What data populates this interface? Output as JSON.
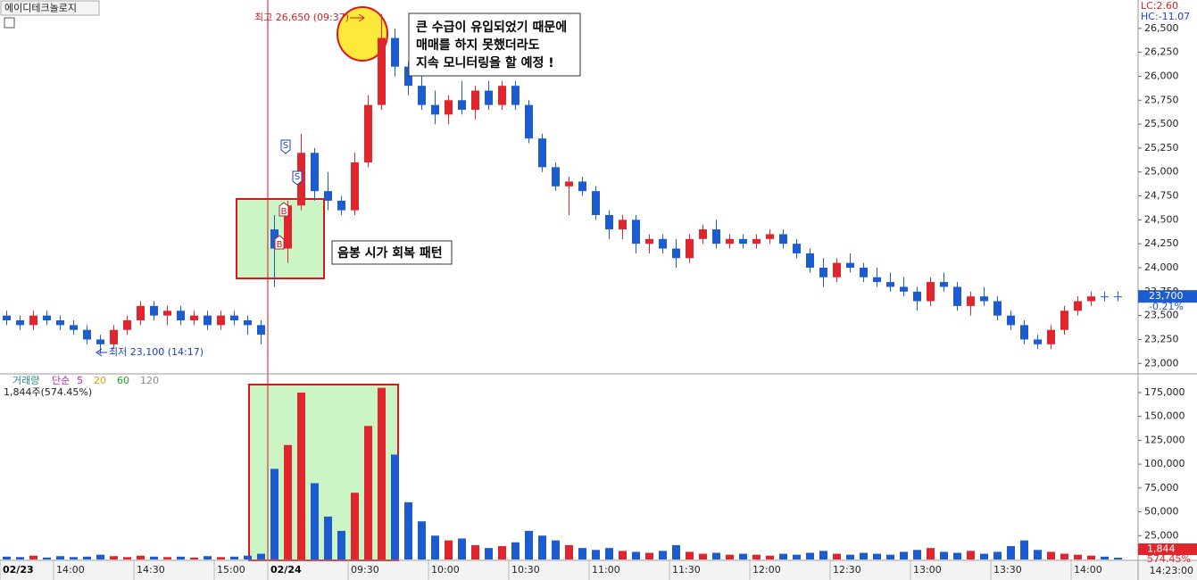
{
  "chart_data": [
    {
      "type": "candlestick",
      "title": "에이디테크놀로지",
      "categories": [
        "02/23",
        null,
        null,
        null,
        "14:00",
        null,
        null,
        null,
        null,
        null,
        "14:30",
        null,
        null,
        null,
        null,
        null,
        "15:00",
        null,
        null,
        null,
        "02/24",
        null,
        null,
        null,
        null,
        null,
        "09:30",
        null,
        null,
        null,
        null,
        null,
        "10:00",
        null,
        null,
        null,
        null,
        null,
        "10:30",
        null,
        null,
        null,
        null,
        null,
        "11:00",
        null,
        null,
        null,
        null,
        null,
        "11:30",
        null,
        null,
        null,
        null,
        null,
        "12:00",
        null,
        null,
        null,
        null,
        null,
        "12:30",
        null,
        null,
        null,
        null,
        null,
        "13:00",
        null,
        null,
        null,
        null,
        null,
        "13:30",
        null,
        null,
        null,
        null,
        null,
        "14:00",
        null,
        null,
        null
      ],
      "open": [
        23500,
        23450,
        23400,
        23500,
        23450,
        23400,
        23350,
        23250,
        23200,
        23350,
        23450,
        23600,
        23500,
        23550,
        23450,
        23500,
        23400,
        23500,
        23450,
        23400,
        24400,
        24200,
        24650,
        25200,
        24800,
        24700,
        24600,
        25100,
        25700,
        26400,
        26100,
        25900,
        25700,
        25600,
        25750,
        25650,
        25850,
        25700,
        25900,
        25700,
        25350,
        25050,
        24850,
        24900,
        24800,
        24550,
        24400,
        24500,
        24250,
        24300,
        24200,
        24100,
        24300,
        24400,
        24250,
        24300,
        24250,
        24300,
        24350,
        24250,
        24150,
        24000,
        23900,
        24050,
        24000,
        23900,
        23850,
        23800,
        23750,
        23650,
        23850,
        23800,
        23600,
        23700,
        23650,
        23500,
        23400,
        23250,
        23200,
        23350,
        23550,
        23650,
        23700,
        23700
      ],
      "high": [
        23550,
        23500,
        23550,
        23550,
        23500,
        23450,
        23400,
        23300,
        23400,
        23500,
        23650,
        23650,
        23600,
        23600,
        23550,
        23550,
        23550,
        23550,
        23500,
        23450,
        24550,
        24700,
        25400,
        25250,
        25000,
        24750,
        25200,
        25800,
        26650,
        26500,
        26150,
        26050,
        25850,
        25800,
        25950,
        25900,
        25950,
        25950,
        25950,
        25750,
        25400,
        25100,
        24950,
        24950,
        24850,
        24600,
        24550,
        24550,
        24350,
        24350,
        24300,
        24350,
        24450,
        24500,
        24350,
        24350,
        24350,
        24400,
        24400,
        24300,
        24200,
        24100,
        24100,
        24150,
        24050,
        24000,
        23950,
        23900,
        23800,
        23900,
        23950,
        23850,
        23750,
        23800,
        23700,
        23550,
        23450,
        23300,
        23400,
        23600,
        23700,
        23750,
        23750,
        23750
      ],
      "low": [
        23400,
        23350,
        23350,
        23400,
        23350,
        23300,
        23200,
        23100,
        23150,
        23300,
        23400,
        23450,
        23400,
        23400,
        23400,
        23350,
        23350,
        23400,
        23300,
        23200,
        23800,
        24050,
        24600,
        24700,
        24600,
        24550,
        24550,
        25050,
        25650,
        26000,
        25800,
        25650,
        25500,
        25500,
        25600,
        25550,
        25650,
        25650,
        25650,
        25300,
        25000,
        24800,
        24550,
        24750,
        24500,
        24300,
        24300,
        24150,
        24150,
        24150,
        24000,
        24050,
        24250,
        24200,
        24200,
        24200,
        24200,
        24250,
        24200,
        24100,
        23950,
        23800,
        23850,
        23950,
        23850,
        23800,
        23750,
        23700,
        23550,
        23600,
        23750,
        23550,
        23500,
        23600,
        23450,
        23350,
        23200,
        23150,
        23150,
        23300,
        23500,
        23600,
        23650,
        23650
      ],
      "close": [
        23450,
        23400,
        23500,
        23450,
        23400,
        23350,
        23250,
        23200,
        23350,
        23450,
        23600,
        23500,
        23550,
        23450,
        23500,
        23400,
        23500,
        23450,
        23400,
        23300,
        24200,
        24650,
        25200,
        24800,
        24700,
        24600,
        25100,
        25700,
        26400,
        26100,
        25900,
        25700,
        25600,
        25750,
        25650,
        25850,
        25700,
        25900,
        25700,
        25350,
        25050,
        24850,
        24900,
        24800,
        24550,
        24400,
        24500,
        24250,
        24300,
        24200,
        24100,
        24300,
        24400,
        24250,
        24300,
        24250,
        24300,
        24350,
        24250,
        24150,
        24000,
        23900,
        24050,
        24000,
        23900,
        23850,
        23800,
        23750,
        23650,
        23850,
        23800,
        23600,
        23700,
        23650,
        23500,
        23400,
        23250,
        23200,
        23350,
        23550,
        23650,
        23700,
        23700,
        23700
      ],
      "up_color": "#e1252d",
      "down_color": "#1d5bd0",
      "ylim": [
        22900,
        26750
      ],
      "yticks": [
        {
          "value": 23000,
          "label": "23,000"
        },
        {
          "value": 23250,
          "label": "23,250"
        },
        {
          "value": 23500,
          "label": "23,500"
        },
        {
          "value": 23750,
          "label": "23,750"
        },
        {
          "value": 24000,
          "label": "24,000"
        },
        {
          "value": 24250,
          "label": "24,250"
        },
        {
          "value": 24500,
          "label": "24,500"
        },
        {
          "value": 24750,
          "label": "24,750"
        },
        {
          "value": 25000,
          "label": "25,000"
        },
        {
          "value": 25250,
          "label": "25,250"
        },
        {
          "value": 25500,
          "label": "25,500"
        },
        {
          "value": 25750,
          "label": "25,750"
        },
        {
          "value": 26000,
          "label": "26,000"
        },
        {
          "value": 26250,
          "label": "26,250"
        },
        {
          "value": 26500,
          "label": "26,500"
        }
      ],
      "grid": false,
      "annotations": [
        "최고 26,650 (09:37)",
        "최저 23,100 (14:17)",
        "큰 수급이 유입되었기 때문에",
        "매매를 하지 못했더라도",
        "지속 모니터링을 할 예정 !",
        "음봉 시가 회복 패턴"
      ],
      "signals": [
        "S",
        "S",
        "B",
        "B"
      ],
      "last_price": {
        "value": 23700,
        "label": "23,700"
      },
      "change": "-0.21%",
      "lc": "LC:2.60",
      "hc": "HC:-11.07"
    },
    {
      "type": "bar",
      "values": [
        3000,
        2500,
        4000,
        2000,
        3500,
        2500,
        3000,
        5000,
        3500,
        2500,
        4000,
        3000,
        2500,
        3000,
        2000,
        3500,
        2500,
        3000,
        4000,
        6000,
        95000,
        120000,
        175000,
        80000,
        45000,
        30000,
        70000,
        140000,
        180000,
        110000,
        60000,
        40000,
        25000,
        20000,
        22000,
        15000,
        12000,
        14000,
        18000,
        30000,
        25000,
        20000,
        15000,
        12000,
        10000,
        12000,
        9000,
        8000,
        7000,
        9000,
        15000,
        8000,
        6000,
        7000,
        5000,
        6000,
        5000,
        4000,
        6000,
        5000,
        7000,
        9000,
        6000,
        5000,
        7000,
        6000,
        5000,
        8000,
        10000,
        12000,
        8000,
        7000,
        9000,
        6000,
        8000,
        14000,
        20000,
        10000,
        8000,
        6000,
        5000,
        4000,
        3000,
        1844
      ],
      "ylim": [
        0,
        189000
      ],
      "yticks": [
        {
          "value": 25000,
          "label": "25,000"
        },
        {
          "value": 50000,
          "label": "50,000"
        },
        {
          "value": 75000,
          "label": "75,000"
        },
        {
          "value": 100000,
          "label": "100,000"
        },
        {
          "value": 125000,
          "label": "125,000"
        },
        {
          "value": 150000,
          "label": "150,000"
        },
        {
          "value": 175000,
          "label": "175,000"
        }
      ],
      "legend_name": "거래량",
      "legend_ma": "단순",
      "ma_periods": [
        5,
        20,
        60,
        120
      ],
      "ma_colors": [
        "#c21fb5",
        "#e0a100",
        "#2a9d2a",
        "#8a8a8a"
      ],
      "subtitle": "1,844주(574.45%)",
      "last_value": {
        "value": 1844,
        "label": "1,844"
      },
      "last_ratio": "574.45%",
      "time": "14:23:00"
    }
  ]
}
